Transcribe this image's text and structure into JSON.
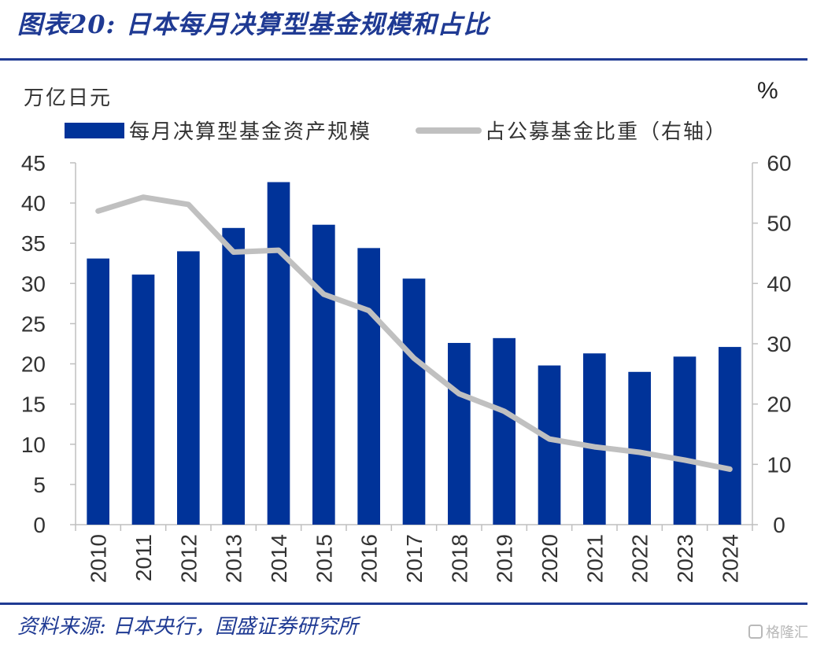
{
  "figure": {
    "title": "图表20:  日本每月决算型基金规模和占比",
    "source": "资料来源:  日本央行，国盛证券研究所",
    "watermark": "格隆汇"
  },
  "chart_data": {
    "type": "bar",
    "categories": [
      "2010",
      "2011",
      "2012",
      "2013",
      "2014",
      "2015",
      "2016",
      "2017",
      "2018",
      "2019",
      "2020",
      "2021",
      "2022",
      "2023",
      "2024"
    ],
    "y_left_unit": "万亿日元",
    "y_right_unit": "%",
    "ylim_left": [
      0,
      45
    ],
    "ylim_right": [
      0,
      60
    ],
    "yticks_left": [
      0,
      5,
      10,
      15,
      20,
      25,
      30,
      35,
      40,
      45
    ],
    "yticks_right": [
      0,
      10,
      20,
      30,
      40,
      50,
      60
    ],
    "grid": false,
    "legend_position": "top",
    "series": [
      {
        "name": "每月决算型基金资产规模",
        "type": "bar",
        "axis": "left",
        "color": "#003399",
        "values": [
          33.1,
          31.1,
          34.0,
          36.9,
          42.6,
          37.3,
          34.4,
          30.6,
          22.6,
          23.2,
          19.8,
          21.3,
          19.0,
          20.9,
          22.1
        ]
      },
      {
        "name": "占公募基金比重（右轴）",
        "type": "line",
        "axis": "right",
        "color": "#c0c0c0",
        "values": [
          52.0,
          54.3,
          53.1,
          45.2,
          45.5,
          38.2,
          35.5,
          27.6,
          21.7,
          18.8,
          14.2,
          12.9,
          12.0,
          10.7,
          9.2
        ]
      }
    ]
  }
}
